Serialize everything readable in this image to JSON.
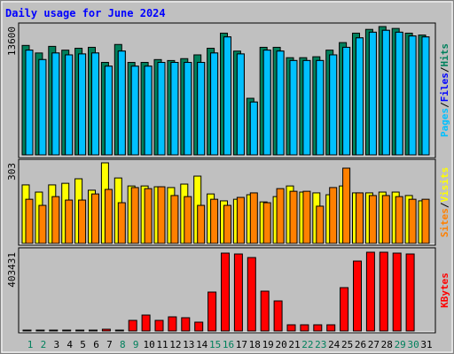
{
  "chart_data": [
    {
      "type": "bar",
      "title": "Daily usage for June 2024",
      "ylim": [
        0,
        13600
      ],
      "yticks": [
        13600
      ],
      "legend_separator": "/",
      "series": [
        {
          "name": "Hits",
          "color": "#00805c",
          "values": [
            11600,
            10800,
            11500,
            11100,
            11300,
            11400,
            9800,
            11700,
            9800,
            9800,
            10100,
            10000,
            10200,
            10600,
            11300,
            12900,
            11000,
            6000,
            11400,
            11400,
            10300,
            10300,
            10400,
            11100,
            11900,
            12900,
            13300,
            13600,
            13400,
            12900,
            12700
          ]
        },
        {
          "name": "Files",
          "color": "#0000ff",
          "values": [
            11100,
            10100,
            10800,
            10600,
            10700,
            10800,
            9400,
            11000,
            9400,
            9400,
            9800,
            9800,
            9800,
            9800,
            10800,
            12500,
            10700,
            5600,
            11100,
            11000,
            10000,
            10000,
            10000,
            10600,
            11400,
            12400,
            13000,
            13200,
            13000,
            12600,
            12500
          ]
        },
        {
          "name": "Pages",
          "color": "#00c0ff",
          "values": [
            11100,
            10100,
            10800,
            10600,
            10700,
            10800,
            9400,
            11000,
            9400,
            9400,
            9800,
            9800,
            9800,
            9800,
            10800,
            12500,
            10700,
            5600,
            11100,
            11000,
            10000,
            10000,
            10000,
            10600,
            11400,
            12400,
            13000,
            13200,
            13000,
            12600,
            12500
          ]
        }
      ]
    },
    {
      "type": "bar",
      "ylim": [
        0,
        303
      ],
      "yticks": [
        303
      ],
      "legend_separator": "/",
      "series": [
        {
          "name": "Visits",
          "color": "#ffff00",
          "values": [
            220,
            193,
            220,
            226,
            243,
            200,
            303,
            246,
            216,
            216,
            213,
            210,
            223,
            253,
            186,
            160,
            166,
            183,
            156,
            176,
            216,
            193,
            190,
            183,
            216,
            190,
            190,
            193,
            193,
            180,
            160
          ]
        },
        {
          "name": "Sites",
          "color": "#ff8000",
          "values": [
            166,
            143,
            176,
            163,
            163,
            186,
            203,
            153,
            210,
            206,
            213,
            180,
            176,
            143,
            166,
            143,
            173,
            190,
            153,
            206,
            196,
            196,
            140,
            210,
            283,
            190,
            180,
            180,
            176,
            166,
            166
          ]
        }
      ]
    },
    {
      "type": "bar",
      "ylim": [
        0,
        403431
      ],
      "yticks": [
        403431
      ],
      "categories": [
        "1",
        "2",
        "3",
        "4",
        "5",
        "6",
        "7",
        "8",
        "9",
        "10",
        "11",
        "12",
        "13",
        "14",
        "15",
        "16",
        "17",
        "18",
        "19",
        "20",
        "21",
        "22",
        "23",
        "24",
        "25",
        "26",
        "27",
        "28",
        "29",
        "30",
        "31"
      ],
      "category_colors": [
        "#00805c",
        "#00805c",
        "#000000",
        "#000000",
        "#000000",
        "#000000",
        "#000000",
        "#00805c",
        "#00805c",
        "#000000",
        "#000000",
        "#000000",
        "#000000",
        "#000000",
        "#00805c",
        "#00805c",
        "#000000",
        "#000000",
        "#000000",
        "#000000",
        "#000000",
        "#00805c",
        "#00805c",
        "#000000",
        "#000000",
        "#000000",
        "#000000",
        "#000000",
        "#00805c",
        "#00805c",
        "#000000"
      ],
      "series": [
        {
          "name": "KBytes",
          "color": "#ff0000",
          "values": [
            4500,
            4500,
            4500,
            4500,
            4500,
            4500,
            9000,
            4500,
            54400,
            81600,
            54400,
            72500,
            68000,
            45300,
            199400,
            398900,
            394400,
            376200,
            204000,
            154100,
            31700,
            31700,
            31700,
            31700,
            222100,
            358100,
            403431,
            403431,
            398900,
            394400,
            0
          ]
        }
      ]
    }
  ]
}
